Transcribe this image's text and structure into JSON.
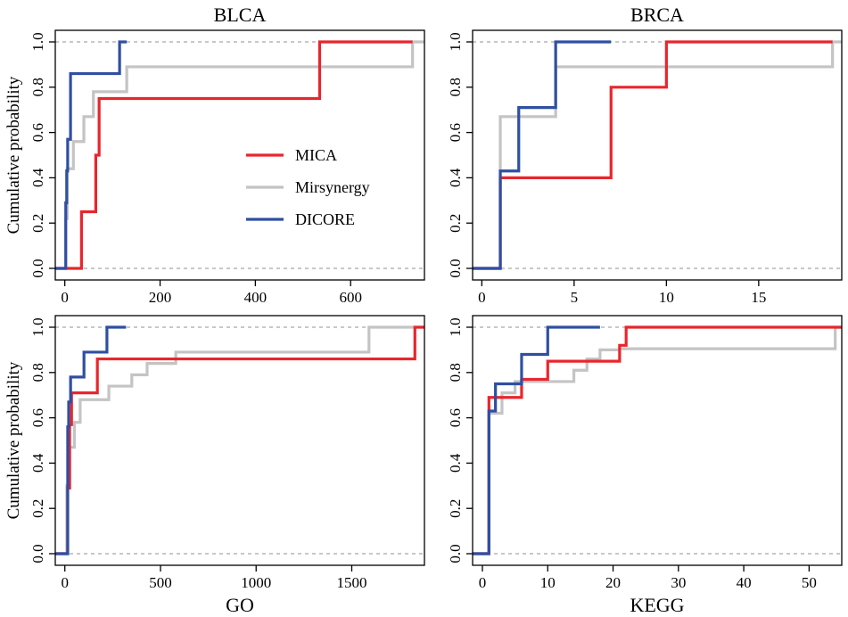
{
  "chart_data": [
    {
      "type": "line",
      "step": "post",
      "title": "BLCA",
      "xlabel": "",
      "ylabel": "Cumulative probability",
      "xlim": [
        -20,
        755
      ],
      "ylim": [
        0,
        1
      ],
      "xticks": [
        0,
        200,
        400,
        600
      ],
      "yticks": [
        0.0,
        0.2,
        0.4,
        0.6,
        0.8,
        1.0
      ],
      "reference_lines_y": [
        0,
        1
      ],
      "legend": {
        "position": "center",
        "show": true
      },
      "series": [
        {
          "name": "MICA",
          "color": "#e8262d",
          "points": [
            [
              -20,
              0
            ],
            [
              35,
              0
            ],
            [
              35,
              0.25
            ],
            [
              65,
              0.25
            ],
            [
              65,
              0.5
            ],
            [
              72,
              0.5
            ],
            [
              72,
              0.75
            ],
            [
              535,
              0.75
            ],
            [
              535,
              1.0
            ],
            [
              730,
              1.0
            ]
          ]
        },
        {
          "name": "Mirsynergy",
          "color": "#c4c4c4",
          "points": [
            [
              -20,
              0
            ],
            [
              2,
              0
            ],
            [
              2,
              0.22
            ],
            [
              5,
              0.22
            ],
            [
              5,
              0.44
            ],
            [
              18,
              0.44
            ],
            [
              18,
              0.56
            ],
            [
              40,
              0.56
            ],
            [
              40,
              0.67
            ],
            [
              60,
              0.67
            ],
            [
              60,
              0.78
            ],
            [
              130,
              0.78
            ],
            [
              130,
              0.89
            ],
            [
              730,
              0.89
            ],
            [
              730,
              1.0
            ],
            [
              755,
              1.0
            ]
          ]
        },
        {
          "name": "DICORE",
          "color": "#2f4fa2",
          "points": [
            [
              -20,
              0
            ],
            [
              2,
              0
            ],
            [
              2,
              0.29
            ],
            [
              4,
              0.29
            ],
            [
              4,
              0.43
            ],
            [
              6,
              0.43
            ],
            [
              6,
              0.57
            ],
            [
              12,
              0.57
            ],
            [
              12,
              0.86
            ],
            [
              115,
              0.86
            ],
            [
              115,
              1.0
            ],
            [
              130,
              1.0
            ]
          ]
        }
      ]
    },
    {
      "type": "line",
      "step": "post",
      "title": "BRCA",
      "xlabel": "",
      "ylabel": "",
      "xlim": [
        -0.5,
        19.5
      ],
      "ylim": [
        0,
        1
      ],
      "xticks": [
        0,
        5,
        10,
        15
      ],
      "yticks": [
        0.0,
        0.2,
        0.4,
        0.6,
        0.8,
        1.0
      ],
      "reference_lines_y": [
        0,
        1
      ],
      "legend": {
        "show": false
      },
      "series": [
        {
          "name": "MICA",
          "color": "#e8262d",
          "points": [
            [
              -0.5,
              0
            ],
            [
              1,
              0
            ],
            [
              1,
              0.4
            ],
            [
              7,
              0.4
            ],
            [
              7,
              0.8
            ],
            [
              10,
              0.8
            ],
            [
              10,
              1.0
            ],
            [
              19,
              1.0
            ]
          ]
        },
        {
          "name": "Mirsynergy",
          "color": "#c4c4c4",
          "points": [
            [
              -0.5,
              0
            ],
            [
              1,
              0
            ],
            [
              1,
              0.67
            ],
            [
              4,
              0.67
            ],
            [
              4,
              0.89
            ],
            [
              19,
              0.89
            ],
            [
              19,
              1.0
            ],
            [
              19.5,
              1.0
            ]
          ]
        },
        {
          "name": "DICORE",
          "color": "#2f4fa2",
          "points": [
            [
              -0.5,
              0
            ],
            [
              1,
              0
            ],
            [
              1,
              0.43
            ],
            [
              2,
              0.43
            ],
            [
              2,
              0.71
            ],
            [
              4,
              0.71
            ],
            [
              4,
              1.0
            ],
            [
              7,
              1.0
            ]
          ]
        }
      ]
    },
    {
      "type": "line",
      "step": "post",
      "title": "",
      "xlabel": "GO",
      "ylabel": "Cumulative probability",
      "xlim": [
        -50,
        1880
      ],
      "ylim": [
        0,
        1
      ],
      "xticks": [
        0,
        500,
        1000,
        1500
      ],
      "yticks": [
        0.0,
        0.2,
        0.4,
        0.6,
        0.8,
        1.0
      ],
      "reference_lines_y": [
        0,
        1
      ],
      "legend": {
        "show": false
      },
      "series": [
        {
          "name": "MICA",
          "color": "#e8262d",
          "points": [
            [
              -50,
              0
            ],
            [
              15,
              0
            ],
            [
              15,
              0.29
            ],
            [
              25,
              0.29
            ],
            [
              25,
              0.57
            ],
            [
              35,
              0.57
            ],
            [
              35,
              0.71
            ],
            [
              170,
              0.71
            ],
            [
              170,
              0.86
            ],
            [
              1830,
              0.86
            ],
            [
              1830,
              1.0
            ],
            [
              1880,
              1.0
            ]
          ]
        },
        {
          "name": "Mirsynergy",
          "color": "#c4c4c4",
          "points": [
            [
              -50,
              0
            ],
            [
              10,
              0
            ],
            [
              10,
              0.3
            ],
            [
              25,
              0.3
            ],
            [
              25,
              0.47
            ],
            [
              50,
              0.47
            ],
            [
              50,
              0.58
            ],
            [
              80,
              0.58
            ],
            [
              80,
              0.68
            ],
            [
              230,
              0.68
            ],
            [
              230,
              0.74
            ],
            [
              350,
              0.74
            ],
            [
              350,
              0.79
            ],
            [
              430,
              0.79
            ],
            [
              430,
              0.84
            ],
            [
              580,
              0.84
            ],
            [
              580,
              0.89
            ],
            [
              1590,
              0.89
            ],
            [
              1590,
              1.0
            ],
            [
              1880,
              1.0
            ]
          ]
        },
        {
          "name": "DICORE",
          "color": "#2f4fa2",
          "points": [
            [
              -50,
              0
            ],
            [
              15,
              0
            ],
            [
              15,
              0.56
            ],
            [
              20,
              0.56
            ],
            [
              20,
              0.67
            ],
            [
              30,
              0.67
            ],
            [
              30,
              0.78
            ],
            [
              100,
              0.78
            ],
            [
              100,
              0.89
            ],
            [
              220,
              0.89
            ],
            [
              220,
              1.0
            ],
            [
              320,
              1.0
            ]
          ]
        }
      ]
    },
    {
      "type": "line",
      "step": "post",
      "title": "",
      "xlabel": "KEGG",
      "ylabel": "",
      "xlim": [
        -1.5,
        55
      ],
      "ylim": [
        0,
        1
      ],
      "xticks": [
        0,
        10,
        20,
        30,
        40,
        50
      ],
      "yticks": [
        0.0,
        0.2,
        0.4,
        0.6,
        0.8,
        1.0
      ],
      "reference_lines_y": [
        0,
        1
      ],
      "legend": {
        "show": false
      },
      "series": [
        {
          "name": "MICA",
          "color": "#e8262d",
          "points": [
            [
              -1.5,
              0
            ],
            [
              1,
              0
            ],
            [
              1,
              0.69
            ],
            [
              6,
              0.69
            ],
            [
              6,
              0.77
            ],
            [
              10,
              0.77
            ],
            [
              10,
              0.85
            ],
            [
              21,
              0.85
            ],
            [
              21,
              0.92
            ],
            [
              22,
              0.92
            ],
            [
              22,
              1.0
            ],
            [
              55,
              1.0
            ]
          ]
        },
        {
          "name": "Mirsynergy",
          "color": "#c4c4c4",
          "points": [
            [
              -1.5,
              0
            ],
            [
              1,
              0
            ],
            [
              1,
              0.62
            ],
            [
              3,
              0.62
            ],
            [
              3,
              0.71
            ],
            [
              5,
              0.71
            ],
            [
              5,
              0.76
            ],
            [
              14,
              0.76
            ],
            [
              14,
              0.81
            ],
            [
              16,
              0.81
            ],
            [
              16,
              0.86
            ],
            [
              18,
              0.86
            ],
            [
              18,
              0.9
            ],
            [
              21,
              0.9
            ],
            [
              21,
              0.905
            ],
            [
              54,
              0.905
            ],
            [
              54,
              1.0
            ],
            [
              55,
              1.0
            ]
          ]
        },
        {
          "name": "DICORE",
          "color": "#2f4fa2",
          "points": [
            [
              -1.5,
              0
            ],
            [
              1,
              0
            ],
            [
              1,
              0.63
            ],
            [
              2,
              0.63
            ],
            [
              2,
              0.75
            ],
            [
              6,
              0.75
            ],
            [
              6,
              0.88
            ],
            [
              10,
              0.88
            ],
            [
              10,
              1.0
            ],
            [
              18,
              1.0
            ]
          ]
        }
      ]
    }
  ]
}
